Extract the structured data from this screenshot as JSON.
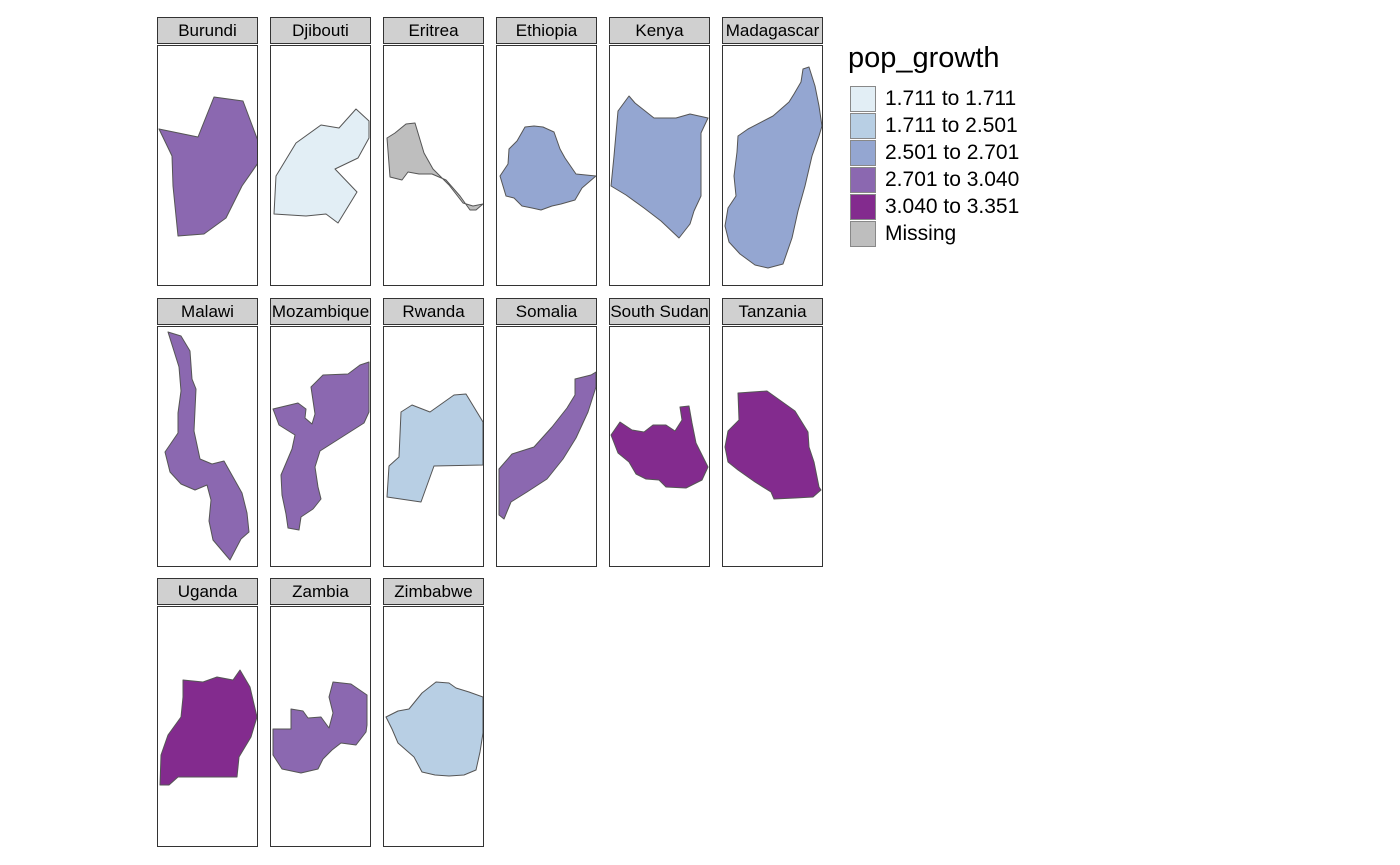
{
  "legend": {
    "title": "pop_growth",
    "items": [
      {
        "label": "1.711 to 1.711",
        "color": "#e2eef5"
      },
      {
        "label": "1.711 to 2.501",
        "color": "#b8cfe4"
      },
      {
        "label": "2.501 to 2.701",
        "color": "#94a6d1"
      },
      {
        "label": "2.701 to 3.040",
        "color": "#8b68b0"
      },
      {
        "label": "3.040 to 3.351",
        "color": "#832b8e"
      },
      {
        "label": "Missing",
        "color": "#bebebe"
      }
    ]
  },
  "panels": [
    {
      "name": "Burundi",
      "class": 3
    },
    {
      "name": "Djibouti",
      "class": 0
    },
    {
      "name": "Eritrea",
      "class": 5
    },
    {
      "name": "Ethiopia",
      "class": 2
    },
    {
      "name": "Kenya",
      "class": 2
    },
    {
      "name": "Madagascar",
      "class": 2
    },
    {
      "name": "Malawi",
      "class": 3
    },
    {
      "name": "Mozambique",
      "class": 3
    },
    {
      "name": "Rwanda",
      "class": 1
    },
    {
      "name": "Somalia",
      "class": 3
    },
    {
      "name": "South Sudan",
      "class": 4
    },
    {
      "name": "Tanzania",
      "class": 4
    },
    {
      "name": "Uganda",
      "class": 4
    },
    {
      "name": "Zambia",
      "class": 3
    },
    {
      "name": "Zimbabwe",
      "class": 1
    }
  ]
}
